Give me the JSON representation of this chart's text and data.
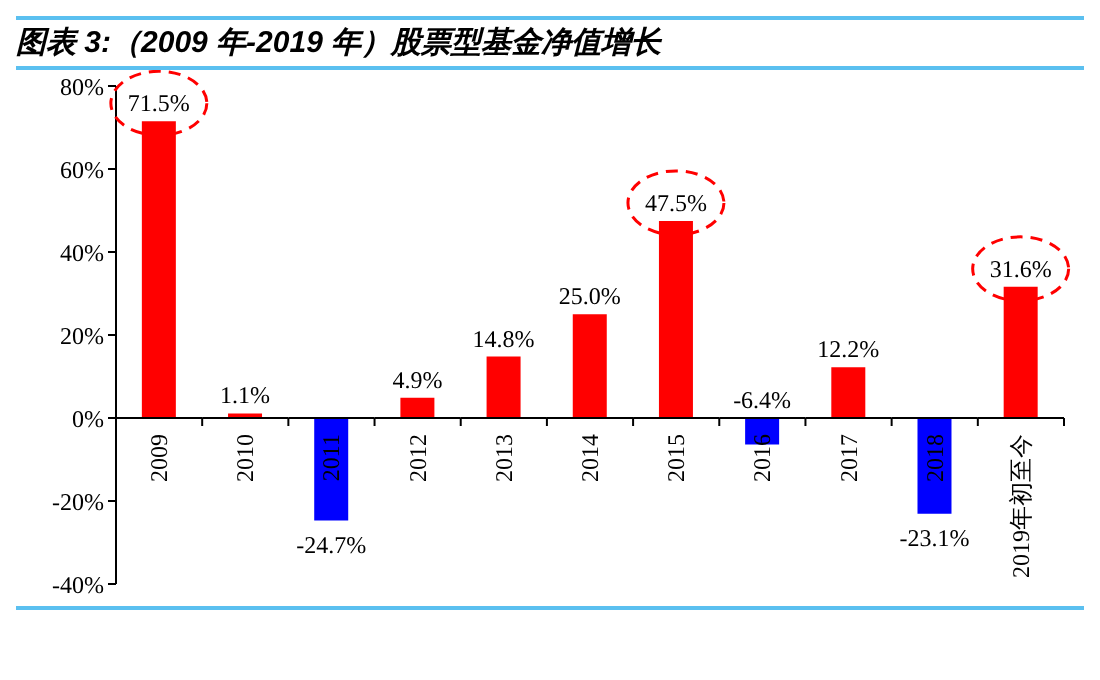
{
  "chart_data": {
    "type": "bar",
    "title": "图表 3:（2009 年-2019 年）股票型基金净值增长",
    "categories": [
      "2009",
      "2010",
      "2011",
      "2012",
      "2013",
      "2014",
      "2015",
      "2016",
      "2017",
      "2018",
      "2019年初至今"
    ],
    "values": [
      71.5,
      1.1,
      -24.7,
      4.9,
      14.8,
      25.0,
      47.5,
      -6.4,
      12.2,
      -23.1,
      31.6
    ],
    "colors": [
      "#ff0000",
      "#ff0000",
      "#0000ff",
      "#ff0000",
      "#ff0000",
      "#ff0000",
      "#ff0000",
      "#0000ff",
      "#ff0000",
      "#0000ff",
      "#ff0000"
    ],
    "value_labels": [
      "71.5%",
      "1.1%",
      "-24.7%",
      "4.9%",
      "14.8%",
      "25.0%",
      "47.5%",
      "-6.4%",
      "12.2%",
      "-23.1%",
      "31.6%"
    ],
    "ylim": [
      -40,
      80
    ],
    "yticks": [
      {
        "value": -40,
        "label": "-40%"
      },
      {
        "value": -20,
        "label": "-20%"
      },
      {
        "value": 0,
        "label": "0%"
      },
      {
        "value": 20,
        "label": "20%"
      },
      {
        "value": 40,
        "label": "40%"
      },
      {
        "value": 60,
        "label": "60%"
      },
      {
        "value": 80,
        "label": "80%"
      }
    ],
    "grid": false,
    "legend": false
  }
}
